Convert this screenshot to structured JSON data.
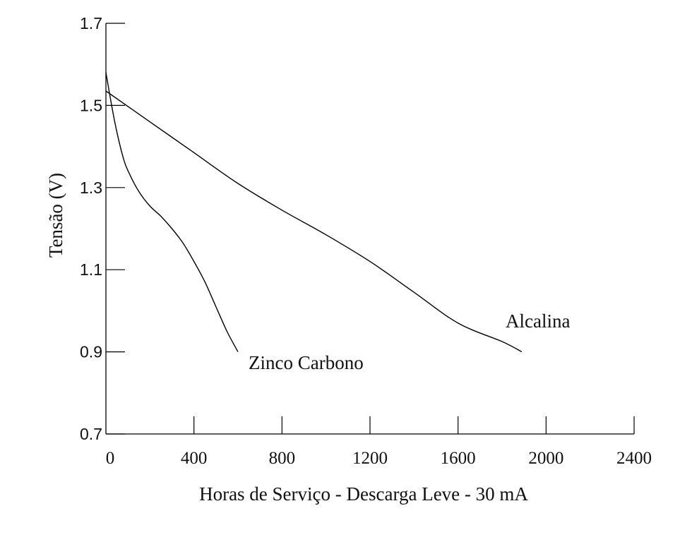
{
  "chart_data": {
    "type": "line",
    "title": "",
    "xlabel": "Horas de Serviço - Descarga Leve - 30 mA",
    "ylabel": "Tensão (V)",
    "xlim": [
      0,
      2400
    ],
    "ylim": [
      0.7,
      1.7
    ],
    "xticks": [
      0,
      400,
      800,
      1200,
      1600,
      2000,
      2400
    ],
    "yticks": [
      0.7,
      0.9,
      1.1,
      1.3,
      1.5,
      1.7
    ],
    "xtick_labels": [
      "0",
      "400",
      "800",
      "1200",
      "1600",
      "2000",
      "2400"
    ],
    "ytick_labels": [
      "0.7",
      "0.9",
      "1.1",
      "1.3",
      "1.5",
      "1.7"
    ],
    "grid": false,
    "series": [
      {
        "name": "Zinco Carbono",
        "x": [
          0,
          40,
          80,
          110,
          150,
          200,
          250,
          300,
          350,
          400,
          450,
          500,
          550,
          600
        ],
        "y": [
          1.58,
          1.46,
          1.37,
          1.33,
          1.29,
          1.255,
          1.23,
          1.2,
          1.165,
          1.12,
          1.07,
          1.01,
          0.95,
          0.9
        ]
      },
      {
        "name": "Alcalina",
        "x": [
          0,
          200,
          400,
          600,
          800,
          1000,
          1200,
          1400,
          1600,
          1800,
          1890
        ],
        "y": [
          1.535,
          1.46,
          1.385,
          1.31,
          1.245,
          1.185,
          1.12,
          1.045,
          0.97,
          0.925,
          0.9
        ]
      }
    ],
    "annotations": [
      {
        "text": "Zinco Carbono",
        "series": "Zinco Carbono"
      },
      {
        "text": "Alcalina",
        "series": "Alcalina"
      }
    ]
  }
}
